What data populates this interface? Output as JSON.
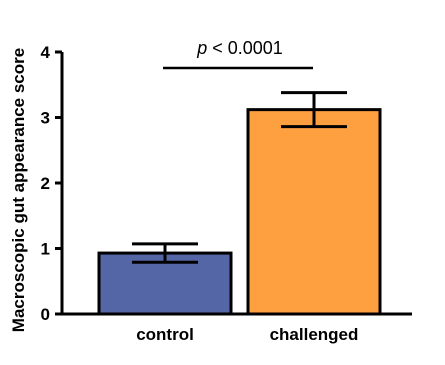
{
  "chart_data": {
    "type": "bar",
    "categories": [
      "control",
      "challenged"
    ],
    "values": [
      0.93,
      3.12
    ],
    "errors": [
      0.14,
      0.26
    ],
    "colors": [
      "#5566a6",
      "#ffa040"
    ],
    "ylabel": "Macroscopic gut appearance score",
    "xlabel": "",
    "title": "",
    "ylim": [
      0,
      4
    ],
    "yticks": [
      "0",
      "1",
      "2",
      "3",
      "4"
    ],
    "grid": false,
    "annotation": {
      "p": "p",
      "text": " < 0.0001"
    }
  }
}
